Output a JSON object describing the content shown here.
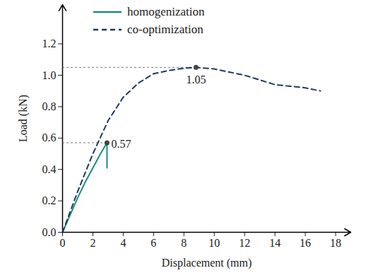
{
  "chart_data": {
    "type": "line",
    "x_label": "Displacement (mm)",
    "y_label": "Load (kN)",
    "xlim": [
      0,
      19
    ],
    "ylim": [
      0,
      1.45
    ],
    "xticks": [
      0,
      2,
      4,
      6,
      8,
      10,
      12,
      14,
      16,
      18
    ],
    "yticks": [
      {
        "value": 0,
        "label": "0.0"
      },
      0.2,
      0.4,
      0.6,
      0.8,
      {
        "value": 1,
        "label": "1.0"
      },
      1.2
    ],
    "grid": false,
    "legend": "top-left",
    "series": [
      {
        "name": "homogenization",
        "color": "#1b8c7e",
        "line_style": "solid",
        "x": [
          0,
          0.5,
          1,
          1.5,
          2,
          2.5,
          2.93,
          2.93
        ],
        "values": [
          0,
          0.11,
          0.22,
          0.32,
          0.41,
          0.5,
          0.57,
          0.41
        ]
      },
      {
        "name": "co-optimization",
        "color": "#1f3a5f",
        "line_style": "dashed",
        "x": [
          0,
          1,
          2,
          3,
          4,
          5,
          6,
          7,
          8,
          8.8,
          10,
          11,
          12,
          13,
          14,
          15,
          16,
          17
        ],
        "values": [
          0,
          0.26,
          0.5,
          0.71,
          0.86,
          0.95,
          1.01,
          1.03,
          1.045,
          1.05,
          1.04,
          1.02,
          1.0,
          0.97,
          0.94,
          0.93,
          0.92,
          0.9
        ]
      }
    ],
    "annotations": [
      {
        "text": "0.57",
        "x": 2.93,
        "y": 0.57
      },
      {
        "text": "1.05",
        "x": 8.8,
        "y": 1.05
      }
    ]
  }
}
